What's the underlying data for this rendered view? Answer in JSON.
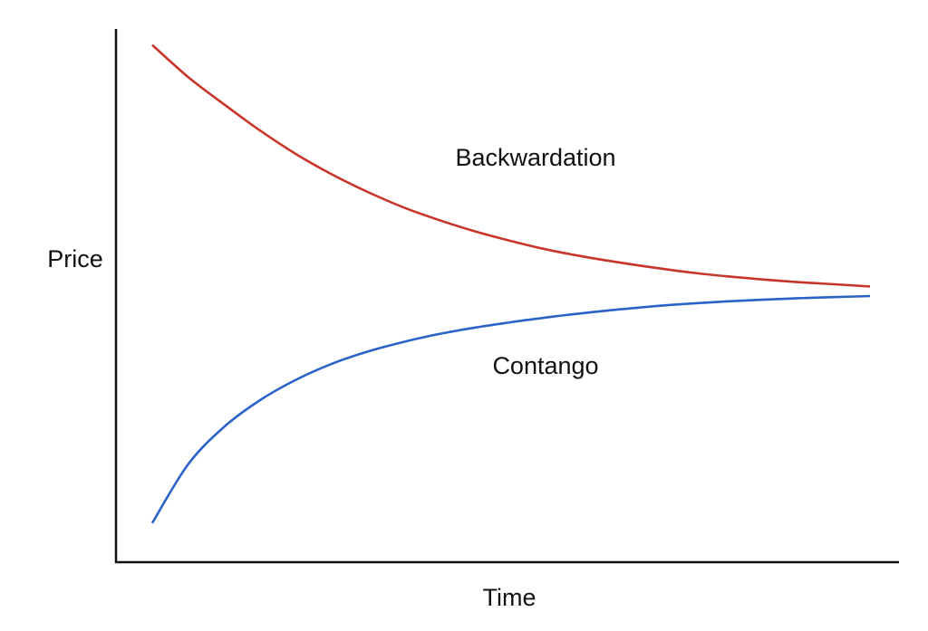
{
  "chart_data": {
    "type": "line",
    "title": "",
    "xlabel": "Time",
    "ylabel": "Price",
    "xlim": [
      0,
      100
    ],
    "ylim": [
      0,
      100
    ],
    "grid": false,
    "legend": "none",
    "series": [
      {
        "name": "Backwardation",
        "color": "#c8352a",
        "x": [
          0,
          5,
          10,
          15,
          20,
          25,
          30,
          35,
          40,
          45,
          50,
          55,
          60,
          65,
          70,
          75,
          80,
          85,
          90,
          95,
          100
        ],
        "values": [
          97.0,
          91.0,
          85.9,
          81.0,
          76.6,
          72.8,
          69.5,
          66.6,
          64.2,
          62.1,
          60.3,
          58.7,
          57.4,
          56.3,
          55.3,
          54.4,
          53.7,
          53.1,
          52.6,
          52.2,
          51.8
        ]
      },
      {
        "name": "Contango",
        "color": "#2b63c9",
        "x": [
          0,
          5,
          10,
          15,
          20,
          25,
          30,
          35,
          40,
          45,
          50,
          55,
          60,
          65,
          70,
          75,
          80,
          85,
          90,
          95,
          100
        ],
        "values": [
          7.5,
          18.5,
          25.5,
          30.5,
          34.3,
          37.3,
          39.6,
          41.4,
          42.9,
          44.1,
          45.1,
          46.0,
          46.8,
          47.5,
          48.1,
          48.6,
          49.0,
          49.3,
          49.6,
          49.8,
          50.0
        ]
      }
    ]
  }
}
